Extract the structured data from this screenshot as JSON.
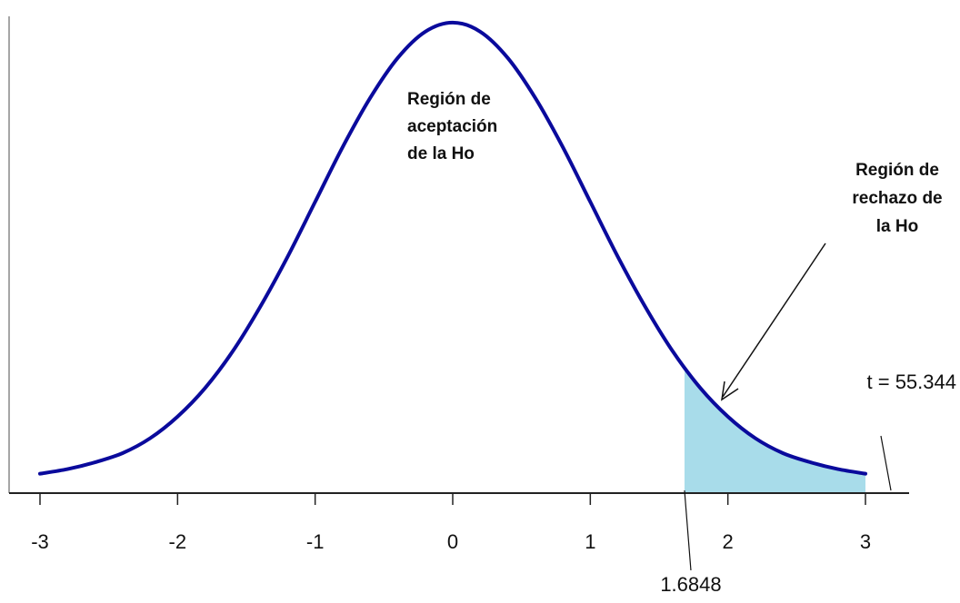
{
  "chart_data": {
    "type": "density",
    "x": [
      -3,
      -2.8,
      -2.6,
      -2.4,
      -2.2,
      -2,
      -1.8,
      -1.6,
      -1.4,
      -1.2,
      -1,
      -0.8,
      -0.6,
      -0.4,
      -0.2,
      0,
      0.2,
      0.4,
      0.6,
      0.8,
      1,
      1.2,
      1.4,
      1.6,
      1.8,
      2,
      2.2,
      2.4,
      2.6,
      2.8,
      3
    ],
    "values": [
      0.004,
      0.008,
      0.014,
      0.022,
      0.035,
      0.054,
      0.079,
      0.111,
      0.15,
      0.194,
      0.242,
      0.29,
      0.333,
      0.368,
      0.391,
      0.399,
      0.391,
      0.368,
      0.333,
      0.29,
      0.242,
      0.194,
      0.15,
      0.111,
      0.079,
      0.054,
      0.035,
      0.022,
      0.014,
      0.008,
      0.004
    ],
    "color": "#0a0a9c",
    "shade_color": "#a8dcea",
    "xlim": [
      -3,
      3
    ],
    "xticks": [
      -3,
      -2,
      -1,
      0,
      1,
      2,
      3
    ],
    "ylim": [
      -0.013,
      0.41
    ],
    "critical_value": 1.6848,
    "statistic_label": "t = 55.344",
    "annotations": [
      {
        "lines": [
          "Región de",
          "aceptación",
          "de la Ho"
        ]
      },
      {
        "lines": [
          "Región de",
          "rechazo de",
          "la Ho"
        ]
      }
    ]
  }
}
